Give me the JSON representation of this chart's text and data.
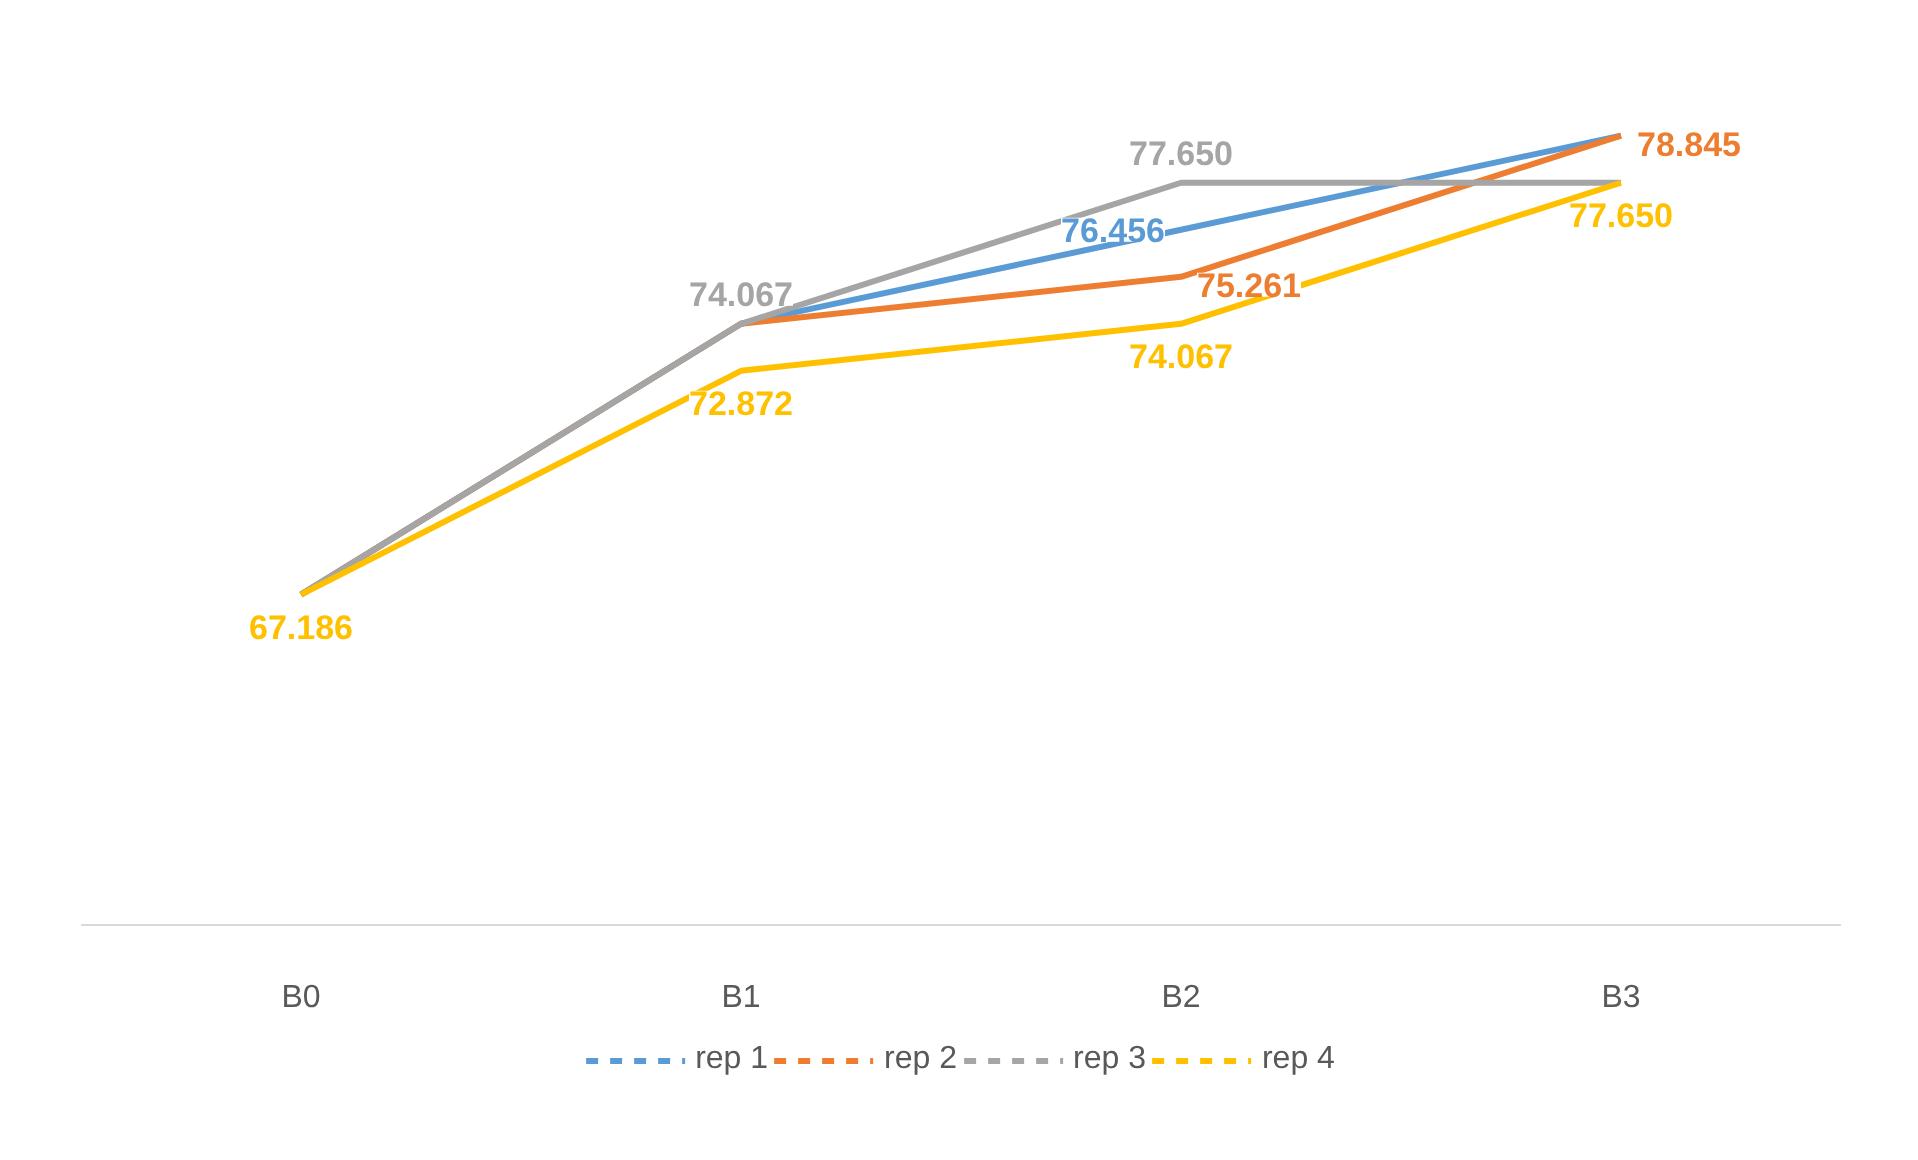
{
  "chart_data": {
    "type": "line",
    "categories": [
      "B0",
      "B1",
      "B2",
      "B3"
    ],
    "legend": "bottom",
    "line_style": "solid",
    "series": [
      {
        "name": "rep 1",
        "color": "#5b9bd5",
        "values": [
          67.186,
          74.067,
          76.456,
          78.845
        ],
        "value_labels": [
          null,
          null,
          "76.456",
          null
        ]
      },
      {
        "name": "rep 2",
        "color": "#ed7d31",
        "values": [
          67.186,
          74.067,
          75.261,
          78.845
        ],
        "value_labels": [
          null,
          null,
          "75.261",
          "78.845"
        ]
      },
      {
        "name": "rep 3",
        "color": "#a5a5a5",
        "values": [
          67.186,
          74.067,
          77.65,
          77.65
        ],
        "value_labels": [
          null,
          "74.067",
          "77.650",
          null
        ]
      },
      {
        "name": "rep 4",
        "color": "#ffc000",
        "values": [
          67.186,
          72.872,
          74.067,
          77.65
        ],
        "value_labels": [
          "67.186",
          "72.872",
          "74.067",
          "77.650"
        ]
      }
    ]
  }
}
